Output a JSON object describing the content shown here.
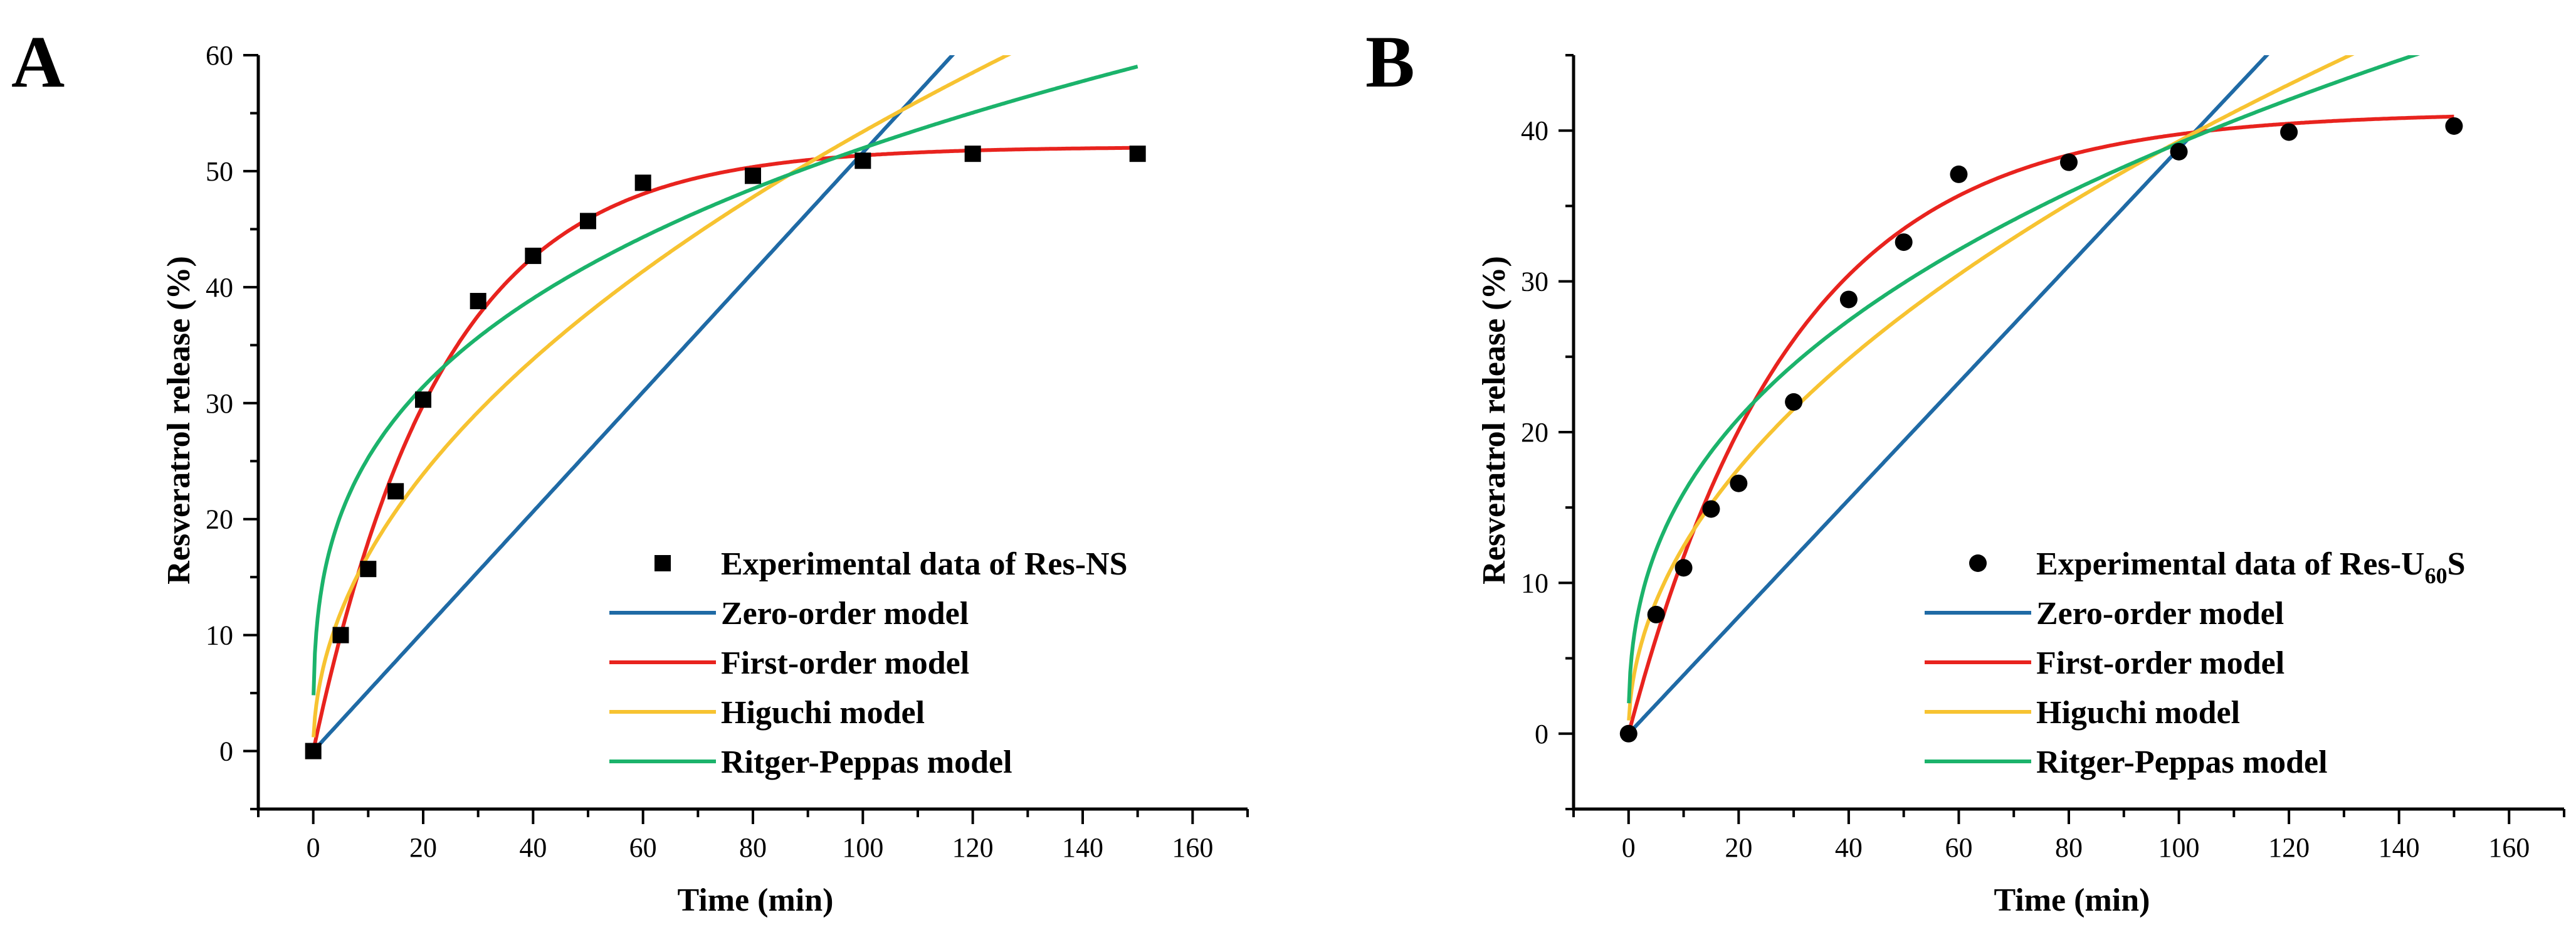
{
  "chart_data": [
    {
      "panel": "A",
      "type": "scatter",
      "xlabel": "Time (min)",
      "ylabel": "Resveratrol release (%)",
      "xlim": [
        -10,
        170
      ],
      "ylim": [
        -5,
        60
      ],
      "xticks": [
        0,
        20,
        40,
        60,
        80,
        100,
        120,
        140,
        160
      ],
      "yticks": [
        0,
        10,
        20,
        30,
        40,
        50,
        60
      ],
      "grid": false,
      "legend_position": "bottom-right",
      "experimental": {
        "name": "Experimental data of Res-NS",
        "marker": "square",
        "x": [
          0,
          5,
          10,
          15,
          20,
          30,
          40,
          50,
          60,
          80,
          100,
          120,
          150
        ],
        "y": [
          0,
          10.0,
          15.7,
          22.4,
          30.3,
          38.8,
          42.7,
          45.7,
          49.0,
          49.6,
          50.9,
          51.5,
          51.5
        ]
      },
      "models": [
        {
          "name": "Zero-order model",
          "color": "#1f6aa5",
          "equation": "k*t",
          "params": {
            "k": 0.516
          }
        },
        {
          "name": "First-order model",
          "color": "#e8231e",
          "equation": "a*(1-exp(-k*t))",
          "params": {
            "a": 52.1,
            "k": 0.0425
          }
        },
        {
          "name": "Higuchi model",
          "color": "#f7c331",
          "equation": "k*sqrt(t)",
          "params": {
            "k": 5.34
          }
        },
        {
          "name": "Ritger-Peppas model",
          "color": "#1bb36b",
          "equation": "k*t^n",
          "params": {
            "k": 12.3,
            "n": 0.313
          }
        }
      ]
    },
    {
      "panel": "B",
      "type": "scatter",
      "xlabel": "Time (min)",
      "ylabel": "Resveratrol release (%)",
      "xlim": [
        -10,
        170
      ],
      "ylim": [
        -5,
        45
      ],
      "xticks": [
        0,
        20,
        40,
        60,
        80,
        100,
        120,
        140,
        160
      ],
      "yticks": [
        0,
        10,
        20,
        30,
        40
      ],
      "grid": false,
      "legend_position": "bottom-right",
      "experimental": {
        "name": "Experimental data of Res-U",
        "name_subscript": "60",
        "name_suffix": "S",
        "marker": "circle",
        "x": [
          0,
          5,
          10,
          15,
          20,
          30,
          40,
          50,
          60,
          80,
          100,
          120,
          150
        ],
        "y": [
          0,
          7.9,
          11.0,
          14.9,
          16.6,
          22.0,
          28.8,
          32.6,
          37.1,
          37.9,
          38.6,
          39.9,
          40.3
        ]
      },
      "models": [
        {
          "name": "Zero-order model",
          "color": "#1f6aa5",
          "equation": "k*t",
          "params": {
            "k": 0.388
          }
        },
        {
          "name": "First-order model",
          "color": "#e8231e",
          "equation": "a*(1-exp(-k*t))",
          "params": {
            "a": 41.2,
            "k": 0.0335
          }
        },
        {
          "name": "Higuchi model",
          "color": "#f7c331",
          "equation": "k*sqrt(t)",
          "params": {
            "k": 3.93
          }
        },
        {
          "name": "Ritger-Peppas model",
          "color": "#1bb36b",
          "equation": "k*t^n",
          "params": {
            "k": 6.5,
            "n": 0.39
          }
        }
      ]
    }
  ]
}
